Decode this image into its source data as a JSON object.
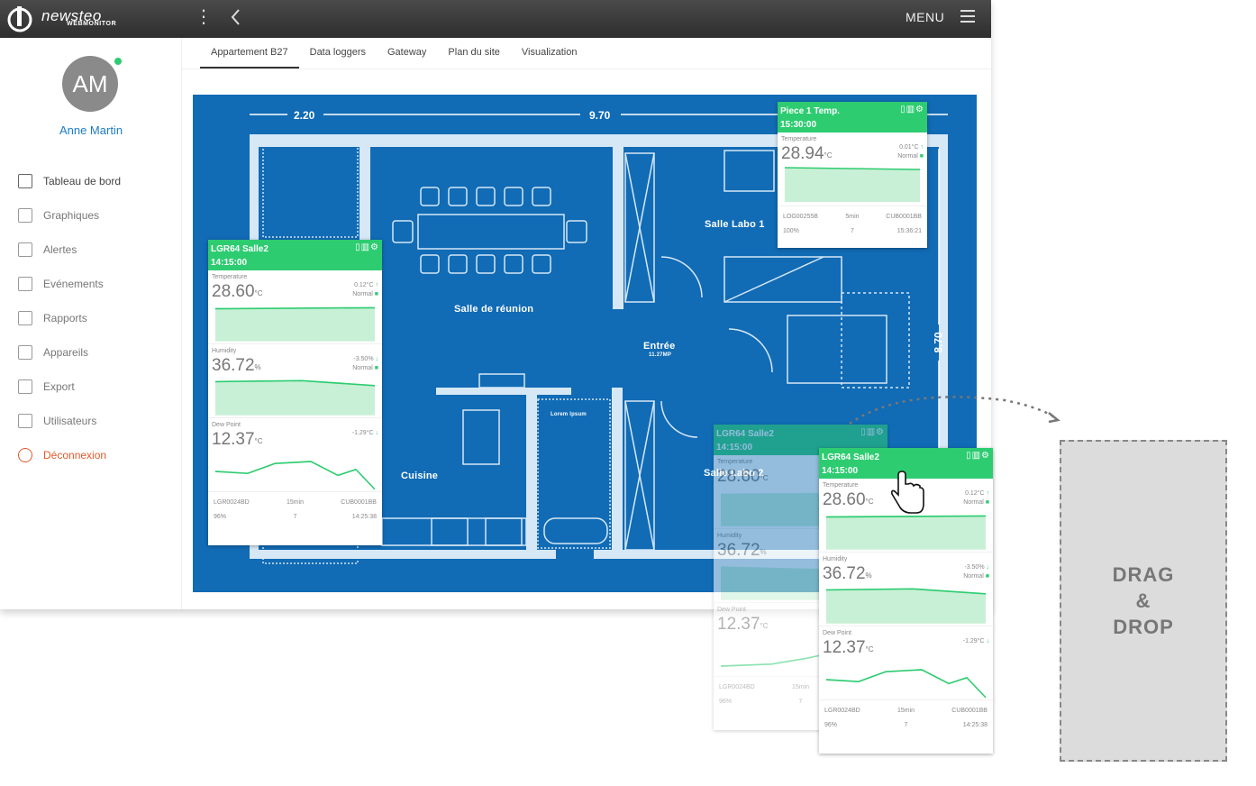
{
  "header": {
    "brand": "newsteo",
    "brand_sub": "WEBMONITOR",
    "menu_label": "MENU"
  },
  "user": {
    "initials": "AM",
    "name": "Anne Martin"
  },
  "sidebar": {
    "items": [
      {
        "label": "Tableau de bord",
        "icon": "monitor-icon"
      },
      {
        "label": "Graphiques",
        "icon": "bar-chart-icon"
      },
      {
        "label": "Alertes",
        "icon": "bell-icon"
      },
      {
        "label": "Evénements",
        "icon": "paperclip-icon"
      },
      {
        "label": "Rapports",
        "icon": "document-icon"
      },
      {
        "label": "Appareils",
        "icon": "grid-icon"
      },
      {
        "label": "Export",
        "icon": "cloud-upload-icon"
      },
      {
        "label": "Utilisateurs",
        "icon": "user-icon"
      },
      {
        "label": "Déconnexion",
        "icon": "power-icon"
      }
    ]
  },
  "tabs": [
    "Appartement B27",
    "Data loggers",
    "Gateway",
    "Plan du site",
    "Visualization"
  ],
  "plan": {
    "dims": {
      "top_left": "2.20",
      "top_total": "9.70",
      "right": "8.70"
    },
    "rooms": {
      "labo1": "Salle Labo 1",
      "reunion": "Salle de réunion",
      "entree": "Entrée",
      "entree_sub": "11.27MP",
      "cuisine": "Cuisine",
      "labo2": "Salle Labo 2",
      "lorem": "Lorem Ipsum"
    }
  },
  "widgets": {
    "piece1": {
      "title": "Piece 1 Temp.",
      "time": "15:30:00",
      "sensors": [
        {
          "label": "Temperature",
          "value": "28.94",
          "unit": "°C",
          "delta": "0.01°C",
          "status": "Normal"
        }
      ],
      "footer": [
        "LOG00255B",
        "5min",
        "CUB0001BB",
        "100%",
        "7",
        "15:36:21"
      ]
    },
    "salle2": {
      "title": "LGR64 Salle2",
      "time": "14:15:00",
      "sensors": [
        {
          "label": "Temperature",
          "value": "28.60",
          "unit": "°C",
          "delta": "0.12°C",
          "status": "Normal"
        },
        {
          "label": "Humidity",
          "value": "36.72",
          "unit": "%",
          "delta": "-3.50%",
          "status": "Normal"
        },
        {
          "label": "Dew Point",
          "value": "12.37",
          "unit": "°C",
          "delta": "-1.29°C",
          "status": ""
        }
      ],
      "footer": [
        "LGR0024BD",
        "15min",
        "CUB0001BB",
        "96%",
        "7",
        "14:25:38"
      ]
    }
  },
  "dropzone": {
    "line1": "DRAG",
    "line2": "&",
    "line3": "DROP"
  },
  "colors": {
    "accent": "#2ecc71",
    "plan_bg": "#116bb5",
    "logout": "#e05a2b",
    "username": "#1d7cc2"
  }
}
